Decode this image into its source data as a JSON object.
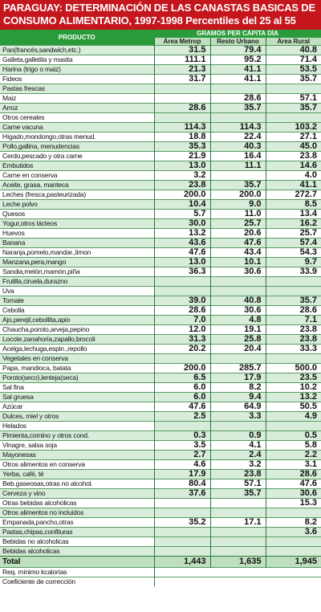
{
  "title": {
    "line1": "PARAGUAY: DETERMINACIÓN DE LAS CANASTAS BASICAS DE",
    "line2": "CONSUMO ALIMENTARIO, 1997-1998 Percentiles del 25 al 55"
  },
  "header": {
    "product": "PRODUCTO",
    "group": "GRAMOS PER CÁPITA DÍA",
    "col1": "Área Metrop",
    "col2": "Resto Urbano",
    "col3": "Área Rural"
  },
  "rows": [
    {
      "label": "Pan(francés,sandwich,etc.)",
      "v": [
        "31.5",
        "79.4",
        "40.8"
      ]
    },
    {
      "label": "Galleta,galletita y masita",
      "v": [
        "111.1",
        "95.2",
        "71.4"
      ]
    },
    {
      "label": "Harina (trigo o maiz)",
      "v": [
        "21.3",
        "41.1",
        "53.5"
      ]
    },
    {
      "label": "Fideos",
      "v": [
        "31.7",
        "41.1",
        "35.7"
      ]
    },
    {
      "label": "Pastas frescas",
      "v": [
        "",
        "",
        ""
      ]
    },
    {
      "label": "Maiz",
      "v": [
        "",
        "28.6",
        "57.1"
      ]
    },
    {
      "label": "Arroz",
      "v": [
        "28.6",
        "35.7",
        "35.7"
      ]
    },
    {
      "label": "Otros cereales",
      "v": [
        "",
        "",
        ""
      ]
    },
    {
      "label": "Carne vacuna",
      "v": [
        "114.3",
        "114.3",
        "103.2"
      ]
    },
    {
      "label": "Hígado,mondongo,otras menud.",
      "v": [
        "18.8",
        "22.4",
        "27.1"
      ]
    },
    {
      "label": "Pollo,gallina, menudencias",
      "v": [
        "35.3",
        "40.3",
        "45.0"
      ]
    },
    {
      "label": "Cerdo,pescado y otra carne",
      "v": [
        "21.9",
        "16.4",
        "23.8"
      ]
    },
    {
      "label": "Embutidos",
      "v": [
        "13.0",
        "11.1",
        "14.6"
      ]
    },
    {
      "label": "Carne en conserva",
      "v": [
        "3.2",
        "",
        "4.0"
      ]
    },
    {
      "label": "Aceite, grasa, manteca",
      "v": [
        "23.8",
        "35.7",
        "41.1"
      ]
    },
    {
      "label": "Leches (fresca,pasteurizada)",
      "v": [
        "200.0",
        "200.0",
        "272.7"
      ]
    },
    {
      "label": "Leche polvo",
      "v": [
        "10.4",
        "9.0",
        "8.5"
      ]
    },
    {
      "label": "Quesos",
      "v": [
        "5.7",
        "11.0",
        "13.4"
      ]
    },
    {
      "label": "Yogur,otros lácteos",
      "v": [
        "30.0",
        "25.7",
        "16.2"
      ]
    },
    {
      "label": "Huevos",
      "v": [
        "13.2",
        "20.6",
        "25.7"
      ]
    },
    {
      "label": "Banana",
      "v": [
        "43.6",
        "47.6",
        "57.4"
      ]
    },
    {
      "label": "Naranja,pomelo,mandar.,limon",
      "v": [
        "47.6",
        "43.4",
        "54.3"
      ]
    },
    {
      "label": "Manzana,pera,mango",
      "v": [
        "13.0",
        "10.1",
        "9.7"
      ]
    },
    {
      "label": "Sandia,melón,mamón,piña",
      "v": [
        "36.3",
        "30.6",
        "33.9"
      ]
    },
    {
      "label": "Frutilla,ciruela,durazno",
      "v": [
        "",
        "",
        ""
      ]
    },
    {
      "label": "Uva",
      "v": [
        "",
        "",
        ""
      ]
    },
    {
      "label": "Tomate",
      "v": [
        "39.0",
        "40.8",
        "35.7"
      ]
    },
    {
      "label": "Cebolla",
      "v": [
        "28.6",
        "30.6",
        "28.6"
      ]
    },
    {
      "label": "Ajo,perejil,cebollita,apio",
      "v": [
        "7.0",
        "4.8",
        "7.1"
      ]
    },
    {
      "label": "Chaucha,poroto,arveja,pepino",
      "v": [
        "12.0",
        "19.1",
        "23.8"
      ]
    },
    {
      "label": "Locote,zanahoria,zapallo,brocoli",
      "v": [
        "31.3",
        "25.8",
        "23.8"
      ]
    },
    {
      "label": "Acelga,lechuga,espin.,repollo",
      "v": [
        "20.2",
        "20.4",
        "33.3"
      ]
    },
    {
      "label": "Vegetales en conserva",
      "v": [
        "",
        "",
        ""
      ]
    },
    {
      "label": "Papa, mandioca, batata",
      "v": [
        "200.0",
        "285.7",
        "500.0"
      ]
    },
    {
      "label": "Poroto(seco),lenteja(seca)",
      "v": [
        "6.5",
        "17.9",
        "23.5"
      ]
    },
    {
      "label": "Sal fina",
      "v": [
        "6.0",
        "8.2",
        "10.2"
      ]
    },
    {
      "label": "Sal gruesa",
      "v": [
        "6.0",
        "9.4",
        "13.2"
      ]
    },
    {
      "label": "Azúcar",
      "v": [
        "47.6",
        "64.9",
        "50.5"
      ]
    },
    {
      "label": "Dulces, miel y otros",
      "v": [
        "2.5",
        "3.3",
        "4.9"
      ]
    },
    {
      "label": "Helados",
      "v": [
        "",
        "",
        ""
      ]
    },
    {
      "label": "Pimienta,comino y otros cond.",
      "v": [
        "0.3",
        "0.9",
        "0.5"
      ]
    },
    {
      "label": "Vinagre, salsa soja",
      "v": [
        "3.5",
        "4.1",
        "5.8"
      ]
    },
    {
      "label": "Mayonesas",
      "v": [
        "2.7",
        "2.4",
        "2.2"
      ]
    },
    {
      "label": "Otros alimentos en conserva",
      "v": [
        "4.6",
        "3.2",
        "3.1"
      ]
    },
    {
      "label": "Yerba, café, té",
      "v": [
        "17.9",
        "23.8",
        "28.6"
      ]
    },
    {
      "label": "Beb.gaseosas,otras no alcohol.",
      "v": [
        "80.4",
        "57.1",
        "47.6"
      ]
    },
    {
      "label": "Cerveza y vino",
      "v": [
        "37.6",
        "35.7",
        "30.6"
      ]
    },
    {
      "label": "Otras bebidas alcohólicas",
      "v": [
        "",
        "",
        "15.3"
      ]
    },
    {
      "label": "Otros alimentos no incluidos",
      "v": [
        "",
        "",
        ""
      ]
    },
    {
      "label": "Empanada,pancho,otras",
      "v": [
        "35.2",
        "17.1",
        "8.2"
      ]
    },
    {
      "label": "Pastas,chipas,confituras",
      "v": [
        "",
        "",
        "3.6"
      ]
    },
    {
      "label": "Bebidas no alcoholicas",
      "v": [
        "",
        "",
        ""
      ]
    },
    {
      "label": "Bebidas alcoholicas",
      "v": [
        "",
        "",
        ""
      ]
    }
  ],
  "total": {
    "label": "Total",
    "v": [
      "1,443",
      "1,635",
      "1,945"
    ]
  },
  "footer": [
    {
      "label": "Req. mínimo kcalorías"
    },
    {
      "label": "Coeficiente de corrección"
    }
  ]
}
